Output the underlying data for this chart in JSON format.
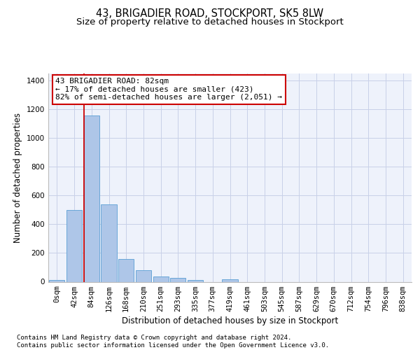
{
  "title": "43, BRIGADIER ROAD, STOCKPORT, SK5 8LW",
  "subtitle": "Size of property relative to detached houses in Stockport",
  "xlabel": "Distribution of detached houses by size in Stockport",
  "ylabel": "Number of detached properties",
  "footnote1": "Contains HM Land Registry data © Crown copyright and database right 2024.",
  "footnote2": "Contains public sector information licensed under the Open Government Licence v3.0.",
  "bar_labels": [
    "0sqm",
    "42sqm",
    "84sqm",
    "126sqm",
    "168sqm",
    "210sqm",
    "251sqm",
    "293sqm",
    "335sqm",
    "377sqm",
    "419sqm",
    "461sqm",
    "503sqm",
    "545sqm",
    "587sqm",
    "629sqm",
    "670sqm",
    "712sqm",
    "754sqm",
    "796sqm",
    "838sqm"
  ],
  "bar_values": [
    10,
    500,
    1160,
    540,
    160,
    82,
    35,
    28,
    14,
    0,
    15,
    0,
    0,
    0,
    0,
    0,
    0,
    0,
    0,
    0,
    0
  ],
  "bar_color": "#aec6e8",
  "bar_edge_color": "#5a9fd4",
  "annotation_box_text": "43 BRIGADIER ROAD: 82sqm\n← 17% of detached houses are smaller (423)\n82% of semi-detached houses are larger (2,051) →",
  "ylim": [
    0,
    1450
  ],
  "yticks": [
    0,
    200,
    400,
    600,
    800,
    1000,
    1200,
    1400
  ],
  "red_line_color": "#cc0000",
  "annotation_box_facecolor": "#ffffff",
  "annotation_box_edgecolor": "#cc0000",
  "background_color": "#eef2fb",
  "grid_color": "#c8d0e8",
  "title_fontsize": 10.5,
  "subtitle_fontsize": 9.5,
  "axis_label_fontsize": 8.5,
  "tick_fontsize": 7.5,
  "annotation_fontsize": 8,
  "footnote_fontsize": 6.5
}
